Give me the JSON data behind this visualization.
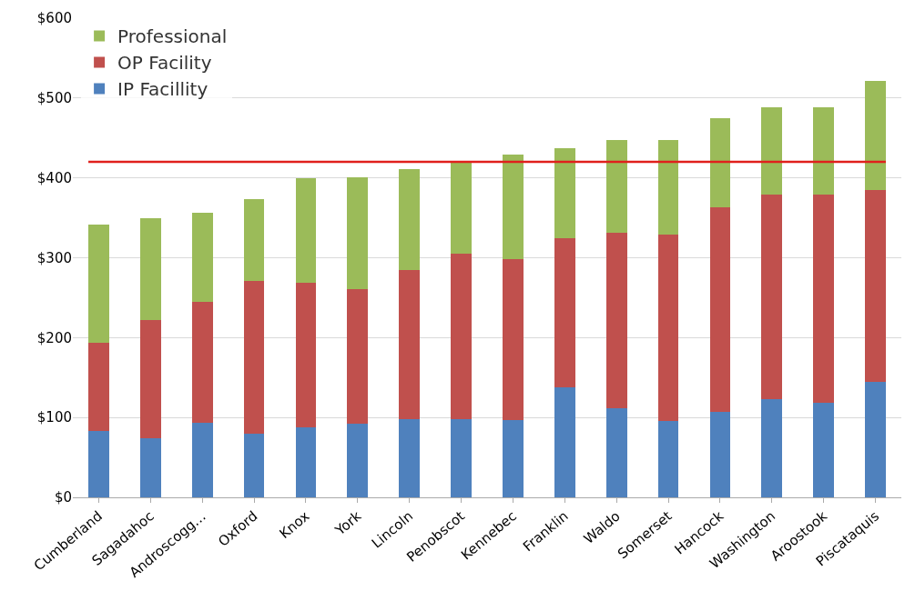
{
  "chart_data": {
    "type": "bar",
    "stacked": true,
    "categories": [
      "Cumberland",
      "Sagadahoc",
      "Androscogg…",
      "Oxford",
      "Knox",
      "York",
      "Lincoln",
      "Penobscot",
      "Kennebec",
      "Franklin",
      "Waldo",
      "Somerset",
      "Hancock",
      "Washington",
      "Aroostook",
      "Piscataquis"
    ],
    "series": [
      {
        "name": "IP Facillity",
        "color": "#4f81bd",
        "values": [
          83,
          74,
          93,
          80,
          88,
          92,
          98,
          98,
          97,
          138,
          112,
          96,
          107,
          123,
          118,
          145
        ]
      },
      {
        "name": "OP Facility",
        "color": "#c0504d",
        "values": [
          111,
          148,
          152,
          191,
          181,
          169,
          187,
          207,
          201,
          187,
          219,
          233,
          256,
          256,
          261,
          240
        ]
      },
      {
        "name": "Professional",
        "color": "#9bbb59",
        "values": [
          148,
          127,
          111,
          103,
          131,
          140,
          126,
          115,
          131,
          112,
          116,
          118,
          112,
          109,
          110,
          137
        ]
      }
    ],
    "ylim": [
      0,
      600
    ],
    "yticks": [
      {
        "value": 0,
        "label": "$0"
      },
      {
        "value": 100,
        "label": "$100"
      },
      {
        "value": 200,
        "label": "$200"
      },
      {
        "value": 300,
        "label": "$300"
      },
      {
        "value": 400,
        "label": "$400"
      },
      {
        "value": 500,
        "label": "$500"
      },
      {
        "value": 600,
        "label": "$600"
      }
    ],
    "ref_lines": [
      {
        "axis": "y",
        "value": 420,
        "color": "#e0201c"
      }
    ],
    "grid": "y",
    "legend": "top left"
  }
}
